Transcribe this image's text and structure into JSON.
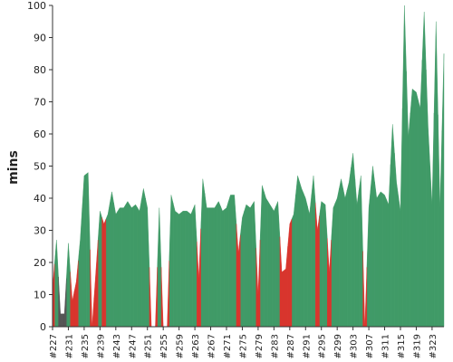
{
  "chart_data": {
    "type": "area",
    "y_label": "mins",
    "categories": [
      "#227",
      null,
      null,
      null,
      "#231",
      null,
      null,
      null,
      "#235",
      null,
      null,
      null,
      "#239",
      null,
      null,
      null,
      "#243",
      null,
      null,
      null,
      "#247",
      null,
      null,
      null,
      "#251",
      null,
      null,
      null,
      "#255",
      null,
      null,
      null,
      "#259",
      null,
      null,
      null,
      "#263",
      null,
      null,
      null,
      "#267",
      null,
      null,
      null,
      "#271",
      null,
      null,
      null,
      "#275",
      null,
      null,
      null,
      "#279",
      null,
      null,
      null,
      "#283",
      null,
      null,
      null,
      "#287",
      null,
      null,
      null,
      "#291",
      null,
      null,
      null,
      "#295",
      null,
      null,
      null,
      "#299",
      null,
      null,
      null,
      "#303",
      null,
      null,
      null,
      "#307",
      null,
      null,
      null,
      "#311",
      null,
      null,
      null,
      "#315",
      null,
      null,
      null,
      "#319",
      null,
      null,
      null,
      "#323",
      null,
      null,
      null
    ],
    "series": [
      {
        "color": "#409a67",
        "values": [
          null,
          27,
          null,
          null,
          26,
          null,
          null,
          27,
          47,
          48,
          null,
          null,
          36,
          null,
          35,
          42,
          35,
          37,
          37,
          39,
          37,
          38,
          36,
          43,
          37,
          null,
          null,
          37,
          null,
          null,
          41,
          36,
          35,
          36,
          36,
          35,
          38,
          null,
          46,
          37,
          37,
          37,
          39,
          36,
          37,
          41,
          41,
          null,
          34,
          38,
          37,
          39,
          null,
          44,
          40,
          38,
          36,
          39,
          null,
          null,
          null,
          35,
          47,
          43,
          40,
          35,
          47,
          null,
          39,
          38,
          null,
          37,
          40,
          46,
          40,
          45,
          54,
          38,
          47,
          null,
          37,
          50,
          40,
          42,
          41,
          38,
          63,
          45,
          36,
          100,
          59,
          74,
          73,
          68,
          98,
          62,
          38,
          95,
          37,
          85
        ]
      },
      {
        "color": "#d8352d",
        "values": [
          12,
          null,
          null,
          null,
          null,
          8,
          14,
          null,
          null,
          null,
          0,
          18,
          null,
          32,
          null,
          null,
          null,
          null,
          null,
          null,
          null,
          null,
          null,
          null,
          null,
          0,
          0,
          null,
          0,
          0,
          null,
          null,
          null,
          null,
          null,
          null,
          null,
          15,
          null,
          null,
          null,
          null,
          null,
          null,
          null,
          null,
          null,
          23,
          null,
          null,
          null,
          null,
          10,
          null,
          null,
          null,
          null,
          null,
          17,
          18,
          32,
          null,
          null,
          null,
          null,
          null,
          null,
          30,
          null,
          null,
          17,
          null,
          null,
          null,
          null,
          null,
          null,
          null,
          null,
          0,
          null,
          null,
          null,
          null,
          null,
          null,
          null,
          null,
          null,
          null,
          null,
          null,
          null,
          null,
          null,
          null,
          null,
          null,
          null,
          null
        ]
      },
      {
        "color": "#555555",
        "values": [
          null,
          null,
          4,
          4,
          null,
          null,
          null,
          null,
          null,
          null,
          null,
          null,
          null,
          null,
          null,
          null,
          null,
          null,
          null,
          null,
          null,
          null,
          null,
          null,
          null,
          null,
          null,
          null,
          null,
          null,
          null,
          null,
          null,
          null,
          null,
          null,
          null,
          null,
          null,
          null,
          null,
          null,
          null,
          null,
          null,
          null,
          null,
          null,
          null,
          null,
          null,
          null,
          null,
          null,
          null,
          null,
          null,
          null,
          null,
          null,
          null,
          null,
          null,
          null,
          null,
          null,
          null,
          null,
          null,
          null,
          null,
          null,
          null,
          null,
          null,
          null,
          null,
          null,
          null,
          null,
          null,
          null,
          null,
          null,
          null,
          null,
          null,
          null,
          null,
          null,
          null,
          null,
          null,
          null,
          null,
          null,
          null,
          null,
          null,
          null
        ]
      }
    ],
    "ylim": [
      0,
      100
    ],
    "yticks": [
      0,
      10,
      20,
      30,
      40,
      50,
      60,
      70,
      80,
      90,
      100
    ]
  }
}
